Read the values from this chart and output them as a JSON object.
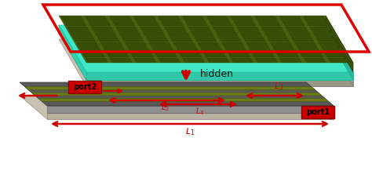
{
  "fig_width": 4.74,
  "fig_height": 2.5,
  "dpi": 100,
  "bg_color": "#ffffff",
  "colors": {
    "ebg_green_dark": "#3a5008",
    "ebg_green_mid": "#4a6010",
    "ebg_patch": "#364e06",
    "cyan": "#40e8c8",
    "cyan_side": "#30c8a8",
    "sub_top": "#686860",
    "sub_side_front": "#989888",
    "sub_bottom": "#c8c0b0",
    "lb_top": "#585858",
    "lb_side_front": "#909090",
    "lb_side_right": "#787878",
    "lb_bottom": "#c8c0b0",
    "trace": "#6a7a18",
    "trace_dark": "#4a5a08",
    "red_outline": "#dd0000",
    "red_fill": "#cc0000",
    "red_arrow": "#cc0000"
  },
  "hidden_text": "hidden",
  "port1_text": "port1",
  "port2_text": "port2"
}
